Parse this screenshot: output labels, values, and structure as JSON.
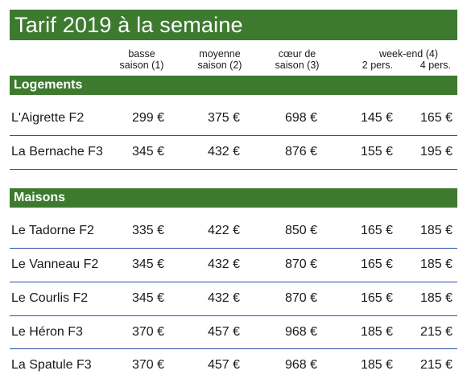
{
  "title": "Tarif 2019 à la semaine",
  "headers": {
    "basse": [
      "basse",
      "saison (1)"
    ],
    "moyenne": [
      "moyenne",
      "saison (2)"
    ],
    "coeur": [
      "cœur de",
      "saison (3)"
    ],
    "weekend": "week-end (4)",
    "pers2": "2 pers.",
    "pers4": "4 pers."
  },
  "sections": [
    {
      "label": "Logements",
      "rows": [
        {
          "name": "L'Aigrette F2",
          "values": [
            "299 €",
            "375 €",
            "698 €",
            "145 €",
            "165 €"
          ]
        },
        {
          "name": "La Bernache F3",
          "values": [
            "345 €",
            "432 €",
            "876 €",
            "155 €",
            "195 €"
          ]
        }
      ]
    },
    {
      "label": "Maisons",
      "rows": [
        {
          "name": "Le Tadorne F2",
          "values": [
            "335 €",
            "422 €",
            "850 €",
            "165 €",
            "185 €"
          ]
        },
        {
          "name": "Le Vanneau F2",
          "values": [
            "345 €",
            "432 €",
            "870 €",
            "165 €",
            "185 €"
          ]
        },
        {
          "name": "Le Courlis F2",
          "values": [
            "345 €",
            "432 €",
            "870 €",
            "165 €",
            "185 €"
          ]
        },
        {
          "name": "Le Héron F3",
          "values": [
            "370 €",
            "457 €",
            "968 €",
            "185 €",
            "215 €"
          ]
        },
        {
          "name": "La Spatule F3",
          "values": [
            "370 €",
            "457 €",
            "968 €",
            "185 €",
            "215 €"
          ]
        }
      ]
    }
  ]
}
